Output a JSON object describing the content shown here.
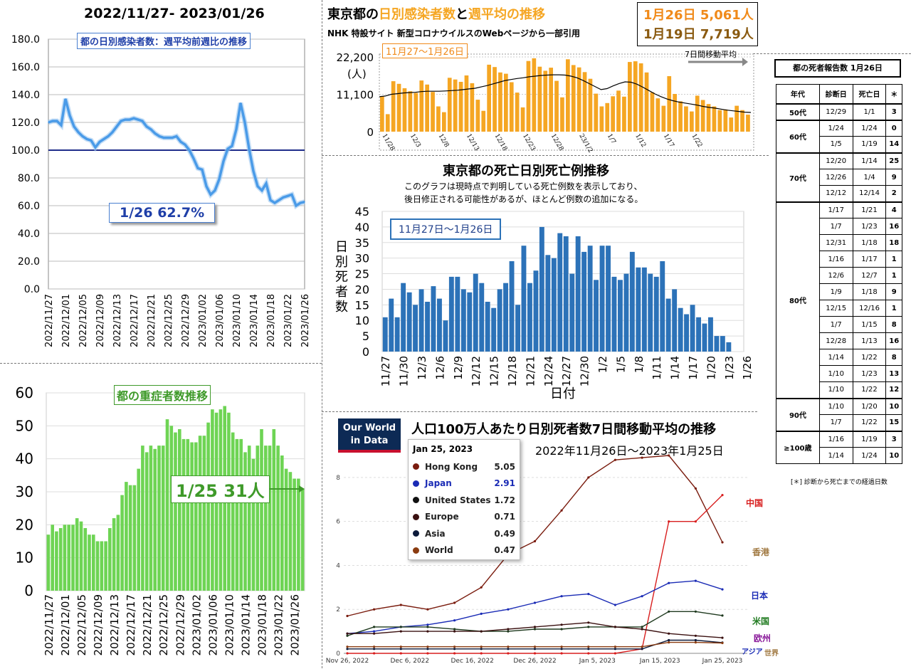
{
  "top_left": {
    "title": "2022/11/27- 2023/01/26",
    "annotation": "1/26 62.7%",
    "colors": {
      "line": "#4a9be8",
      "ref": "#1f2d8a"
    }
  },
  "bottom_left": {
    "annotation": "1/25 31人",
    "colors": {
      "bar": "#6ed454",
      "label": "#3f9a2a"
    }
  },
  "top_right": {
    "title_parts": [
      "東京都の",
      "日別感染者数",
      "と",
      "週平均",
      "の推移"
    ],
    "subtitle": "NHK 特設サイト 新型コロナウイルスのWebページから一部引用",
    "callout_line1": "1月26日 5,061人",
    "callout_line2": "1月19日 7,719人",
    "range_label": "11月27〜1月26日",
    "unit_label": "(人)",
    "moving_avg_label": "7日間移動平均",
    "colors": {
      "bar": "#f5a623",
      "avg": "#000000",
      "title_orange": "#f5a623"
    }
  },
  "middle": {
    "title": "東京都の死亡日別死亡例推移",
    "note_line1": "このグラフは現時点で判明している死亡例数を表示しており、",
    "note_line2": "後日修正される可能性があるが、ほとんど例数の追加になる。",
    "range_label": "11月27日〜1月26日",
    "colors": {
      "bar": "#2c72b8",
      "label_border": "#2c72b8"
    }
  },
  "owid": {
    "logo_line1": "Our World",
    "logo_line2": "in Data",
    "title": "人口100万人あたり日別死者数7日間移動平均の推移",
    "subtitle": "2022年11月26日〜2023年1月25日",
    "tooltip_date": "Jan 25, 2023",
    "tooltip_rows": [
      {
        "name": "Hong Kong",
        "value": "5.05",
        "color": "#7a1c0e"
      },
      {
        "name": "Japan",
        "value": "2.91",
        "color": "#1a2bb5"
      },
      {
        "name": "United States",
        "value": "1.72",
        "color": "#111111"
      },
      {
        "name": "Europe",
        "value": "0.71",
        "color": "#3a1010"
      },
      {
        "name": "Asia",
        "value": "0.49",
        "color": "#0c1a3a"
      },
      {
        "name": "World",
        "value": "0.47",
        "color": "#8a3b10"
      }
    ],
    "right_labels": [
      {
        "text": "中国",
        "color": "#d81e1e"
      },
      {
        "text": "香港",
        "color": "#a07840"
      },
      {
        "text": "日本",
        "color": "#1a2bb5"
      },
      {
        "text": "米国",
        "color": "#1f7a1f"
      },
      {
        "text": "欧州",
        "color": "#8a1a9a"
      },
      {
        "text": "アジア",
        "color": "#1a2bb5"
      },
      {
        "text": "世界",
        "color": "#a07840"
      }
    ]
  },
  "deaths_table": {
    "title": "都の死者報告数 1月26日",
    "headers": [
      "年代",
      "診断日",
      "死亡日",
      "＊"
    ],
    "footnote": "[＊] 診断から死亡までの経過日数",
    "groups": [
      {
        "age": "50代",
        "rows": [
          [
            "12/29",
            "1/1",
            "3"
          ]
        ]
      },
      {
        "age": "60代",
        "rows": [
          [
            "1/24",
            "1/24",
            "0"
          ],
          [
            "1/5",
            "1/19",
            "14"
          ]
        ]
      },
      {
        "age": "70代",
        "rows": [
          [
            "12/20",
            "1/14",
            "25"
          ],
          [
            "12/26",
            "1/4",
            "9"
          ],
          [
            "12/12",
            "12/14",
            "2"
          ]
        ]
      },
      {
        "age": "80代",
        "rows": [
          [
            "1/17",
            "1/21",
            "4"
          ],
          [
            "1/7",
            "1/23",
            "16"
          ],
          [
            "12/31",
            "1/18",
            "18"
          ],
          [
            "1/16",
            "1/17",
            "1"
          ],
          [
            "12/6",
            "12/7",
            "1"
          ],
          [
            "1/9",
            "1/18",
            "9"
          ],
          [
            "12/15",
            "12/16",
            "1"
          ],
          [
            "1/7",
            "1/15",
            "8"
          ],
          [
            "12/28",
            "1/13",
            "16"
          ],
          [
            "1/14",
            "1/22",
            "8"
          ],
          [
            "1/10",
            "1/23",
            "13"
          ],
          [
            "1/10",
            "1/22",
            "12"
          ]
        ]
      },
      {
        "age": "90代",
        "rows": [
          [
            "1/10",
            "1/20",
            "10"
          ],
          [
            "1/7",
            "1/22",
            "15"
          ]
        ]
      },
      {
        "age": "≥100歳",
        "rows": [
          [
            "1/16",
            "1/19",
            "3"
          ],
          [
            "1/14",
            "1/24",
            "10"
          ]
        ]
      }
    ]
  },
  "chart_data": [
    {
      "id": "weekly-ratio",
      "type": "line",
      "title": "都の日別感染者数：週平均前週比の推移",
      "ylim": [
        0,
        180
      ],
      "yticks": [
        "0.0",
        "20.0",
        "40.0",
        "60.0",
        "80.0",
        "100.0",
        "120.0",
        "140.0",
        "160.0",
        "180.0"
      ],
      "reference_line": 100,
      "xticks": [
        "2022/11/27",
        "2022/12/01",
        "2022/12/05",
        "2022/12/09",
        "2022/12/13",
        "2022/12/17",
        "2022/12/21",
        "2022/12/25",
        "2022/12/29",
        "2023/01/02",
        "2023/01/06",
        "2023/01/10",
        "2023/01/14",
        "2023/01/18",
        "2023/01/22",
        "2023/01/26"
      ],
      "values": [
        120,
        121,
        121,
        118,
        137,
        125,
        117,
        113,
        110,
        108,
        107,
        102,
        106,
        108,
        110,
        113,
        117,
        121,
        122,
        122,
        123,
        122,
        121,
        117,
        115,
        112,
        110,
        109,
        109,
        109,
        110,
        106,
        104,
        100,
        94,
        87,
        86,
        74,
        68,
        71,
        79,
        92,
        101,
        103,
        115,
        134,
        120,
        101,
        85,
        74,
        71,
        76,
        64,
        62,
        64,
        66,
        67,
        68,
        60,
        62,
        62.7
      ]
    },
    {
      "id": "severe",
      "type": "bar",
      "title": "都の重症者数推移",
      "ylim": [
        0,
        60
      ],
      "yticks": [
        "0",
        "10",
        "20",
        "30",
        "40",
        "50",
        "60"
      ],
      "xticks": [
        "2022/11/27",
        "2022/12/01",
        "2022/12/05",
        "2022/12/09",
        "2022/12/13",
        "2022/12/17",
        "2022/12/21",
        "2022/12/25",
        "2022/12/29",
        "2023/01/02",
        "2023/01/06",
        "2023/01/10",
        "2023/01/14",
        "2023/01/18",
        "2023/01/22",
        "2023/01/26"
      ],
      "values": [
        17,
        20,
        18,
        19,
        20,
        20,
        20,
        22,
        21,
        19,
        17,
        17,
        15,
        15,
        15,
        19,
        22,
        23,
        29,
        33,
        32,
        32,
        37,
        44,
        42,
        44,
        43,
        44,
        44,
        52,
        50,
        48,
        49,
        46,
        46,
        45,
        45,
        47,
        47,
        51,
        55,
        54,
        55,
        56,
        54,
        48,
        46,
        46,
        42,
        44,
        40,
        44,
        49,
        44,
        44,
        49,
        44,
        41,
        37,
        36,
        34,
        34,
        31
      ]
    },
    {
      "id": "daily-cases",
      "type": "bar",
      "title": "東京都の日別感染者数と週平均の推移",
      "yticks": [
        "0",
        "11,100",
        "22,200"
      ],
      "ylim": [
        0,
        22200
      ],
      "xticks": [
        "11/28",
        "12/3",
        "12/8",
        "12/13",
        "12/18",
        "12/23",
        "12/28",
        "23/1/2",
        "1/7",
        "1/12",
        "1/17",
        "1/22"
      ],
      "values": [
        10500,
        5200,
        15000,
        14200,
        12900,
        12000,
        11500,
        15200,
        14000,
        11800,
        7500,
        5800,
        16000,
        15500,
        14800,
        16700,
        14400,
        9500,
        6200,
        19900,
        19200,
        17600,
        17200,
        14700,
        11600,
        7200,
        21000,
        21800,
        19300,
        18100,
        19000,
        15100,
        10200,
        21500,
        19800,
        19100,
        17700,
        15700,
        11300,
        7500,
        8500,
        10500,
        12200,
        10400,
        20700,
        20900,
        20300,
        17600,
        11700,
        9900,
        7700,
        16500,
        11200,
        9000,
        7500,
        6000,
        10700,
        9400,
        8200,
        7500,
        6400,
        6600,
        4200,
        7700,
        6400,
        5061
      ],
      "moving_avg": [
        10400,
        10600,
        11100,
        11300,
        11500,
        11600,
        11700,
        11900,
        12000,
        12000,
        12000,
        12100,
        12200,
        12300,
        12500,
        12700,
        12900,
        13300,
        13700,
        14200,
        14700,
        15200,
        15500,
        15800,
        16000,
        16300,
        16500,
        16700,
        16800,
        16900,
        16900,
        16800,
        16500,
        16000,
        15200,
        14300,
        13400,
        12500,
        12800,
        13600,
        14300,
        14800,
        14700,
        14100,
        13200,
        12200,
        11200,
        10400,
        9700,
        9200,
        8800,
        8500,
        8200,
        7900,
        7500,
        7200,
        7000,
        6700,
        6400,
        6200,
        6000,
        5800,
        5700
      ]
    },
    {
      "id": "deaths-by-day",
      "type": "bar",
      "title": "東京都の死亡日別死亡例推移",
      "ylabel": "日別死者数",
      "xlabel": "日付",
      "ylim": [
        0,
        45
      ],
      "yticks": [
        "0",
        "5",
        "10",
        "15",
        "20",
        "25",
        "30",
        "35",
        "40",
        "45"
      ],
      "xticks": [
        "11/27",
        "11/30",
        "12/3",
        "12/6",
        "12/9",
        "12/12",
        "12/15",
        "12/18",
        "12/21",
        "12/24",
        "12/27",
        "12/30",
        "1/2",
        "1/5",
        "1/8",
        "1/11",
        "1/14",
        "1/17",
        "1/20",
        "1/23",
        "1/26"
      ],
      "values": [
        11,
        17,
        11,
        22,
        19,
        15,
        20,
        16,
        21,
        17,
        10,
        24,
        24,
        20,
        19,
        25,
        22,
        16,
        14,
        20,
        22,
        29,
        15,
        34,
        22,
        26,
        40,
        31,
        30,
        38,
        37,
        25,
        37,
        32,
        34,
        23,
        34,
        34,
        24,
        23,
        25,
        32,
        27,
        27,
        25,
        24,
        29,
        17,
        20,
        14,
        12,
        15,
        11,
        9,
        11,
        5,
        5,
        3,
        0,
        0
      ]
    },
    {
      "id": "owid-deaths",
      "type": "line",
      "title": "人口100万人あたり日別死者数7日間移動平均の推移",
      "ylim": [
        0,
        9
      ],
      "yticks": [
        "0",
        "2",
        "4",
        "6",
        "8"
      ],
      "xticks": [
        "Nov 26, 2022",
        "Dec 6, 2022",
        "Dec 16, 2022",
        "Dec 26, 2022",
        "Jan 5, 2023",
        "Jan 15, 2023",
        "Jan 25, 2023"
      ],
      "series": [
        {
          "name": "Hong Kong",
          "values": [
            1.7,
            2.0,
            2.2,
            2.0,
            2.3,
            3.0,
            4.5,
            5.1,
            6.5,
            8.0,
            8.8,
            8.9,
            9.0,
            7.5,
            5.05
          ]
        },
        {
          "name": "China",
          "values": [
            0,
            0,
            0,
            0,
            0,
            0,
            0,
            0,
            0,
            0,
            0,
            0.2,
            6.0,
            6.0,
            7.2
          ]
        },
        {
          "name": "Japan",
          "values": [
            0.9,
            1.0,
            1.2,
            1.3,
            1.5,
            1.8,
            2.0,
            2.3,
            2.6,
            2.7,
            2.2,
            2.6,
            3.2,
            3.3,
            2.91
          ]
        },
        {
          "name": "United States",
          "values": [
            0.8,
            1.2,
            1.2,
            1.2,
            1.1,
            1.0,
            1.0,
            1.1,
            1.1,
            1.2,
            1.2,
            1.2,
            1.9,
            1.9,
            1.72
          ]
        },
        {
          "name": "Europe",
          "values": [
            0.9,
            0.9,
            1.0,
            1.0,
            1.0,
            1.0,
            1.1,
            1.2,
            1.3,
            1.4,
            1.2,
            1.1,
            0.9,
            0.8,
            0.71
          ]
        },
        {
          "name": "Asia",
          "values": [
            0.2,
            0.2,
            0.2,
            0.2,
            0.2,
            0.2,
            0.2,
            0.2,
            0.2,
            0.2,
            0.2,
            0.2,
            0.6,
            0.6,
            0.49
          ]
        },
        {
          "name": "World",
          "values": [
            0.3,
            0.3,
            0.3,
            0.3,
            0.3,
            0.3,
            0.3,
            0.3,
            0.3,
            0.3,
            0.3,
            0.3,
            0.5,
            0.5,
            0.47
          ]
        }
      ]
    }
  ]
}
